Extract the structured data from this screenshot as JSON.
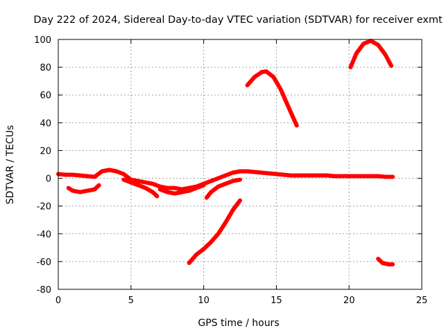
{
  "chart_data": {
    "type": "line",
    "title": "Day 222 of 2024, Sidereal Day-to-day VTEC variation (SDTVAR) for receiver exmt",
    "xlabel": "GPS time / hours",
    "ylabel": "SDTVAR / TECUs",
    "xlim": [
      0,
      25
    ],
    "ylim": [
      -80,
      100
    ],
    "xticks": [
      0,
      5,
      10,
      15,
      20,
      25
    ],
    "yticks": [
      -80,
      -60,
      -40,
      -20,
      0,
      20,
      40,
      60,
      80,
      100
    ],
    "xtick_labels": [
      "0",
      "5",
      "10",
      "15",
      "20",
      "25"
    ],
    "ytick_labels": [
      "-80",
      "-60",
      "-40",
      "-20",
      "0",
      "20",
      "40",
      "60",
      "80",
      "100"
    ],
    "grid": true,
    "color": "#ff0000",
    "series": [
      {
        "name": "arc-main",
        "x": [
          0,
          0.5,
          1,
          1.5,
          2,
          2.5,
          3,
          3.5,
          4,
          4.5,
          5,
          5.5,
          6,
          6.5,
          7,
          7.5,
          8,
          8.5,
          9,
          9.5,
          10,
          10.5,
          11,
          11.5,
          12,
          12.5,
          13,
          13.5,
          14,
          14.5,
          15,
          15.5,
          16,
          16.5,
          17,
          17.5,
          18,
          18.5,
          19,
          19.5,
          20,
          20.5,
          21,
          21.5,
          22,
          22.5,
          23
        ],
        "y": [
          3,
          2.5,
          2.5,
          2,
          1.5,
          1,
          5,
          6,
          5,
          3,
          -1,
          -2,
          -3,
          -4,
          -6,
          -7,
          -7,
          -8,
          -7,
          -6,
          -4,
          -2,
          0,
          2,
          4,
          5,
          5,
          4.5,
          4,
          3.5,
          3,
          2.5,
          2,
          2,
          2,
          2,
          2,
          2,
          1.5,
          1.5,
          1.5,
          1.5,
          1.5,
          1.5,
          1.5,
          1,
          1
        ]
      },
      {
        "name": "arc-2",
        "x": [
          0.7,
          1,
          1.5,
          2,
          2.5,
          2.8
        ],
        "y": [
          -7,
          -9,
          -10,
          -9,
          -8,
          -5
        ]
      },
      {
        "name": "arc-3",
        "x": [
          4.5,
          5,
          5.5,
          6,
          6.5,
          6.8
        ],
        "y": [
          -1,
          -3,
          -5,
          -7,
          -10,
          -13
        ]
      },
      {
        "name": "arc-4",
        "x": [
          7,
          7.5,
          8,
          8.5,
          9,
          9.5,
          10
        ],
        "y": [
          -8,
          -10,
          -11,
          -10,
          -9,
          -7,
          -5
        ]
      },
      {
        "name": "arc-5",
        "x": [
          10.2,
          10.5,
          11,
          11.5,
          12,
          12.5
        ],
        "y": [
          -14,
          -10,
          -6,
          -4,
          -2,
          -1
        ]
      },
      {
        "name": "arc-6",
        "x": [
          9,
          9.5,
          10,
          10.5,
          11,
          11.5,
          12,
          12.5
        ],
        "y": [
          -61,
          -55,
          -51,
          -46,
          -40,
          -32,
          -23,
          -16
        ]
      },
      {
        "name": "arc-7",
        "x": [
          13,
          13.5,
          14,
          14.3,
          14.8,
          15.3,
          15.8,
          16.4
        ],
        "y": [
          67,
          73,
          76.5,
          77,
          73,
          64,
          52,
          38
        ]
      },
      {
        "name": "arc-8",
        "x": [
          20.1,
          20.5,
          21,
          21.5,
          22,
          22.5,
          22.9
        ],
        "y": [
          80,
          90,
          97,
          99,
          96,
          89,
          81
        ]
      },
      {
        "name": "arc-9",
        "x": [
          22,
          22.3,
          22.7,
          23
        ],
        "y": [
          -58,
          -61,
          -62,
          -62
        ]
      }
    ]
  }
}
